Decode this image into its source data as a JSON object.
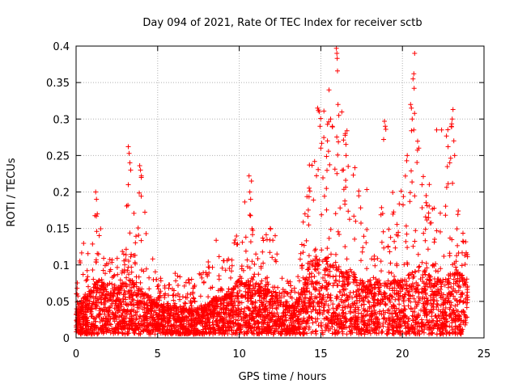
{
  "chart_data": {
    "type": "scatter",
    "title": "Day 094 of 2021, Rate Of TEC Index for receiver sctb",
    "xlabel": "GPS time / hours",
    "ylabel": "ROTI / TECUs",
    "xlim": [
      0,
      25
    ],
    "ylim": [
      0,
      0.4
    ],
    "xticks": [
      0,
      5,
      10,
      15,
      20,
      25
    ],
    "yticks": [
      0,
      0.05,
      0.1,
      0.15,
      0.2,
      0.25,
      0.3,
      0.35,
      0.4
    ],
    "xtick_labels": [
      "0",
      "5",
      "10",
      "15",
      "20",
      "25"
    ],
    "ytick_labels": [
      "0",
      "0.05",
      "0.1",
      "0.15",
      "0.2",
      "0.25",
      "0.3",
      "0.35",
      "0.4"
    ],
    "grid": true,
    "marker": "+",
    "color": "#ff0000",
    "envelope": {
      "x": [
        0,
        0.5,
        1,
        1.2,
        1.5,
        2,
        2.5,
        3,
        3.2,
        3.5,
        4,
        4.5,
        5,
        5.5,
        6,
        7,
        8,
        8.5,
        9,
        9.5,
        10,
        10.5,
        11,
        11.5,
        12,
        12.5,
        13,
        13.5,
        14,
        14.3,
        14.8,
        15,
        15.5,
        16,
        16.5,
        17,
        17.5,
        18,
        18.5,
        19,
        19.5,
        20,
        20.5,
        21,
        21.5,
        22,
        22.5,
        23,
        23.5,
        24
      ],
      "typical": [
        0.04,
        0.05,
        0.06,
        0.07,
        0.07,
        0.06,
        0.06,
        0.07,
        0.08,
        0.07,
        0.06,
        0.05,
        0.04,
        0.04,
        0.04,
        0.035,
        0.04,
        0.05,
        0.05,
        0.06,
        0.07,
        0.07,
        0.07,
        0.06,
        0.06,
        0.05,
        0.04,
        0.04,
        0.07,
        0.09,
        0.1,
        0.1,
        0.09,
        0.09,
        0.08,
        0.08,
        0.07,
        0.07,
        0.07,
        0.07,
        0.07,
        0.07,
        0.08,
        0.08,
        0.08,
        0.07,
        0.07,
        0.08,
        0.08,
        0.07
      ],
      "peak": [
        0.08,
        0.14,
        0.13,
        0.2,
        0.15,
        0.11,
        0.12,
        0.13,
        0.26,
        0.17,
        0.24,
        0.13,
        0.09,
        0.09,
        0.09,
        0.08,
        0.1,
        0.14,
        0.12,
        0.13,
        0.16,
        0.22,
        0.14,
        0.15,
        0.15,
        0.11,
        0.08,
        0.07,
        0.19,
        0.21,
        0.3,
        0.34,
        0.3,
        0.4,
        0.28,
        0.24,
        0.21,
        0.2,
        0.17,
        0.3,
        0.18,
        0.25,
        0.39,
        0.31,
        0.19,
        0.28,
        0.26,
        0.31,
        0.16,
        0.13
      ],
      "floor": 0.005
    },
    "spikes": [
      {
        "x": 1.2,
        "y": 0.2
      },
      {
        "x": 1.25,
        "y": 0.19
      },
      {
        "x": 1.3,
        "y": 0.17
      },
      {
        "x": 3.2,
        "y": 0.262
      },
      {
        "x": 3.25,
        "y": 0.253
      },
      {
        "x": 3.3,
        "y": 0.24
      },
      {
        "x": 3.35,
        "y": 0.23
      },
      {
        "x": 3.2,
        "y": 0.21
      },
      {
        "x": 3.9,
        "y": 0.236
      },
      {
        "x": 3.95,
        "y": 0.23
      },
      {
        "x": 4.0,
        "y": 0.22
      },
      {
        "x": 10.6,
        "y": 0.222
      },
      {
        "x": 10.65,
        "y": 0.2
      },
      {
        "x": 10.7,
        "y": 0.19
      },
      {
        "x": 10.75,
        "y": 0.215
      },
      {
        "x": 11.9,
        "y": 0.15
      },
      {
        "x": 12.2,
        "y": 0.14
      },
      {
        "x": 14.3,
        "y": 0.237
      },
      {
        "x": 14.8,
        "y": 0.315
      },
      {
        "x": 14.85,
        "y": 0.312
      },
      {
        "x": 14.9,
        "y": 0.31
      },
      {
        "x": 14.95,
        "y": 0.29
      },
      {
        "x": 15.0,
        "y": 0.26
      },
      {
        "x": 15.5,
        "y": 0.34
      },
      {
        "x": 15.6,
        "y": 0.3
      },
      {
        "x": 15.7,
        "y": 0.29
      },
      {
        "x": 15.95,
        "y": 0.397
      },
      {
        "x": 15.98,
        "y": 0.39
      },
      {
        "x": 16.0,
        "y": 0.383
      },
      {
        "x": 16.02,
        "y": 0.366
      },
      {
        "x": 16.05,
        "y": 0.32
      },
      {
        "x": 16.1,
        "y": 0.305
      },
      {
        "x": 16.5,
        "y": 0.28
      },
      {
        "x": 16.6,
        "y": 0.284
      },
      {
        "x": 16.55,
        "y": 0.25
      },
      {
        "x": 18.9,
        "y": 0.297
      },
      {
        "x": 18.95,
        "y": 0.29
      },
      {
        "x": 18.85,
        "y": 0.272
      },
      {
        "x": 20.3,
        "y": 0.25
      },
      {
        "x": 20.75,
        "y": 0.39
      },
      {
        "x": 20.7,
        "y": 0.362
      },
      {
        "x": 20.65,
        "y": 0.355
      },
      {
        "x": 20.72,
        "y": 0.342
      },
      {
        "x": 20.5,
        "y": 0.32
      },
      {
        "x": 20.55,
        "y": 0.315
      },
      {
        "x": 20.6,
        "y": 0.3
      },
      {
        "x": 20.7,
        "y": 0.285
      },
      {
        "x": 21.0,
        "y": 0.26
      },
      {
        "x": 21.2,
        "y": 0.21
      },
      {
        "x": 22.1,
        "y": 0.285
      },
      {
        "x": 22.4,
        "y": 0.285
      },
      {
        "x": 22.8,
        "y": 0.262
      },
      {
        "x": 22.9,
        "y": 0.24
      },
      {
        "x": 23.1,
        "y": 0.313
      },
      {
        "x": 23.05,
        "y": 0.3
      },
      {
        "x": 23.0,
        "y": 0.29
      },
      {
        "x": 23.15,
        "y": 0.27
      },
      {
        "x": 23.2,
        "y": 0.25
      }
    ]
  }
}
